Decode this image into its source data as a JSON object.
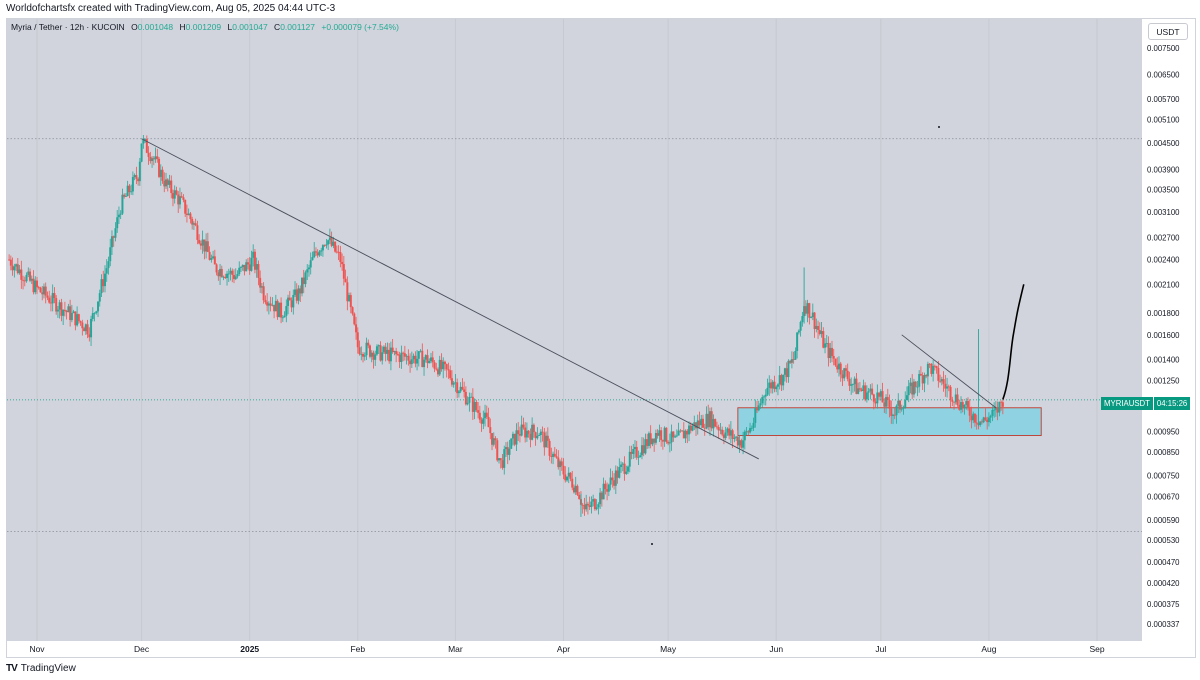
{
  "header": {
    "caption": "Worldofchartsfx created with TradingView.com, Aug 05, 2025 04:44 UTC-3"
  },
  "legend": {
    "symbol": "Myria / Tether · 12h · KUCOIN",
    "open_label": "O",
    "open": "0.001048",
    "high_label": "H",
    "high": "0.001209",
    "low_label": "L",
    "low": "0.001047",
    "close_label": "C",
    "close": "0.001127",
    "change": "+0.000079 (+7.54%)"
  },
  "toolbar": {
    "currency_label": "USDT"
  },
  "price_tag": {
    "symbol": "MYRIAUSDT",
    "countdown": "04:15:26"
  },
  "footer": {
    "brand_logo": "TV",
    "brand": "TradingView"
  },
  "colors": {
    "up": "#26a69a",
    "down": "#ef5350",
    "background": "#d1d4dc",
    "zone_fill": "#8fd3e3",
    "zone_border": "#c0392b",
    "trendline": "#4a4f5c"
  },
  "chart_data": {
    "type": "candlestick",
    "scale": "log",
    "x_axis_ticks": [
      "Nov",
      "Dec",
      "2025",
      "Feb",
      "Mar",
      "Apr",
      "May",
      "Jun",
      "Jul",
      "Aug",
      "Sep"
    ],
    "y_axis_ticks": [
      "0.007500",
      "0.006500",
      "0.005700",
      "0.005100",
      "0.004500",
      "0.003900",
      "0.003500",
      "0.003100",
      "0.002700",
      "0.002400",
      "0.002100",
      "0.001800",
      "0.001600",
      "0.001400",
      "0.001250",
      "0.000950",
      "0.000850",
      "0.000750",
      "0.000670",
      "0.000590",
      "0.000530",
      "0.000470",
      "0.000420",
      "0.000375",
      "0.000337"
    ],
    "price_path": [
      [
        "2024-10-24",
        0.0024
      ],
      [
        "2024-11-01",
        0.00205
      ],
      [
        "2024-11-10",
        0.0018
      ],
      [
        "2024-11-16",
        0.00165
      ],
      [
        "2024-11-21",
        0.0023
      ],
      [
        "2024-11-25",
        0.0032
      ],
      [
        "2024-11-30",
        0.0038
      ],
      [
        "2024-12-01",
        0.00455
      ],
      [
        "2024-12-04",
        0.0042
      ],
      [
        "2024-12-08",
        0.0036
      ],
      [
        "2024-12-12",
        0.0033
      ],
      [
        "2024-12-16",
        0.0029
      ],
      [
        "2024-12-22",
        0.0023
      ],
      [
        "2024-12-28",
        0.0022
      ],
      [
        "2025-01-02",
        0.0024
      ],
      [
        "2025-01-05",
        0.002
      ],
      [
        "2025-01-10",
        0.0018
      ],
      [
        "2025-01-15",
        0.002
      ],
      [
        "2025-01-20",
        0.0025
      ],
      [
        "2025-01-23",
        0.0027
      ],
      [
        "2025-01-27",
        0.0024
      ],
      [
        "2025-02-01",
        0.0015
      ],
      [
        "2025-02-07",
        0.00145
      ],
      [
        "2025-02-15",
        0.00142
      ],
      [
        "2025-02-21",
        0.0014
      ],
      [
        "2025-02-27",
        0.0013
      ],
      [
        "2025-03-05",
        0.00112
      ],
      [
        "2025-03-10",
        0.001
      ],
      [
        "2025-03-14",
        0.0008
      ],
      [
        "2025-03-19",
        0.00095
      ],
      [
        "2025-03-25",
        0.00095
      ],
      [
        "2025-03-31",
        0.00078
      ],
      [
        "2025-04-05",
        0.0007
      ],
      [
        "2025-04-07",
        0.00062
      ],
      [
        "2025-04-10",
        0.00065
      ],
      [
        "2025-04-16",
        0.00075
      ],
      [
        "2025-04-22",
        0.00085
      ],
      [
        "2025-04-28",
        0.00095
      ],
      [
        "2025-05-03",
        0.0009
      ],
      [
        "2025-05-08",
        0.00098
      ],
      [
        "2025-05-13",
        0.00102
      ],
      [
        "2025-05-17",
        0.00095
      ],
      [
        "2025-05-22",
        0.0009
      ],
      [
        "2025-05-25",
        0.00098
      ],
      [
        "2025-05-29",
        0.0012
      ],
      [
        "2025-06-03",
        0.00128
      ],
      [
        "2025-06-06",
        0.0014
      ],
      [
        "2025-06-09",
        0.0019
      ],
      [
        "2025-06-11",
        0.0018
      ],
      [
        "2025-06-15",
        0.0015
      ],
      [
        "2025-06-19",
        0.00135
      ],
      [
        "2025-06-24",
        0.0012
      ],
      [
        "2025-06-30",
        0.00115
      ],
      [
        "2025-07-05",
        0.00105
      ],
      [
        "2025-07-10",
        0.0012
      ],
      [
        "2025-07-15",
        0.00135
      ],
      [
        "2025-07-20",
        0.0012
      ],
      [
        "2025-07-25",
        0.00108
      ],
      [
        "2025-07-30",
        0.001
      ],
      [
        "2025-08-03",
        0.00105
      ],
      [
        "2025-08-05",
        0.00113
      ]
    ],
    "annotations": {
      "top_level": 0.0046,
      "bottom_level": 0.000555,
      "current_price": 0.001127,
      "downtrend_line": [
        [
          "2024-12-01",
          0.0046
        ],
        [
          "2025-05-27",
          0.00082
        ]
      ],
      "short_trendline": [
        [
          "2025-07-07",
          0.0016
        ],
        [
          "2025-08-03",
          0.00108
        ]
      ],
      "support_zone": {
        "from": "2025-05-21",
        "to": "2025-08-16",
        "low": 0.00093,
        "high": 0.00108
      },
      "projection": [
        [
          "2025-08-05",
          0.00113
        ],
        [
          "2025-08-07",
          0.00125
        ],
        [
          "2025-08-08",
          0.0016
        ],
        [
          "2025-08-09",
          0.0018
        ],
        [
          "2025-08-11",
          0.0021
        ]
      ]
    }
  }
}
